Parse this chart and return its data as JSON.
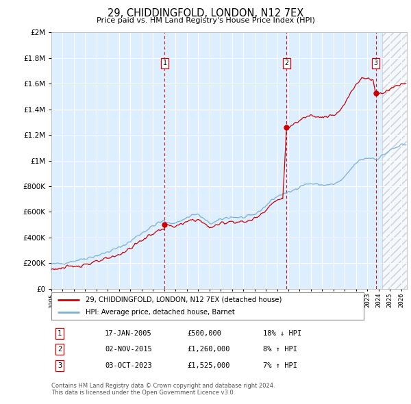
{
  "title": "29, CHIDDINGFOLD, LONDON, N12 7EX",
  "subtitle": "Price paid vs. HM Land Registry's House Price Index (HPI)",
  "legend_line1": "29, CHIDDINGFOLD, LONDON, N12 7EX (detached house)",
  "legend_line2": "HPI: Average price, detached house, Barnet",
  "footer1": "Contains HM Land Registry data © Crown copyright and database right 2024.",
  "footer2": "This data is licensed under the Open Government Licence v3.0.",
  "hpi_color": "#7ab0d4",
  "price_color": "#cc0000",
  "vline_color": "#cc0000",
  "background_color": "#ddeeff",
  "ylim": [
    0,
    2000000
  ],
  "yticks": [
    0,
    200000,
    400000,
    600000,
    800000,
    1000000,
    1200000,
    1400000,
    1600000,
    1800000,
    2000000
  ],
  "xlim_start": 1995.0,
  "xlim_end": 2026.5,
  "sale_dates": [
    2005.04,
    2015.84,
    2023.75
  ],
  "sale_labels": [
    "1",
    "2",
    "3"
  ],
  "sale_prices": [
    500000,
    1260000,
    1525000
  ],
  "table_data": [
    [
      "1",
      "17-JAN-2005",
      "£500,000",
      "18% ↓ HPI"
    ],
    [
      "2",
      "02-NOV-2015",
      "£1,260,000",
      "8% ↑ HPI"
    ],
    [
      "3",
      "03-OCT-2023",
      "£1,525,000",
      "7% ↑ HPI"
    ]
  ],
  "hatch_start": 2024.33,
  "hpi_base_year": 1995.0,
  "hpi_base_value": 193000
}
